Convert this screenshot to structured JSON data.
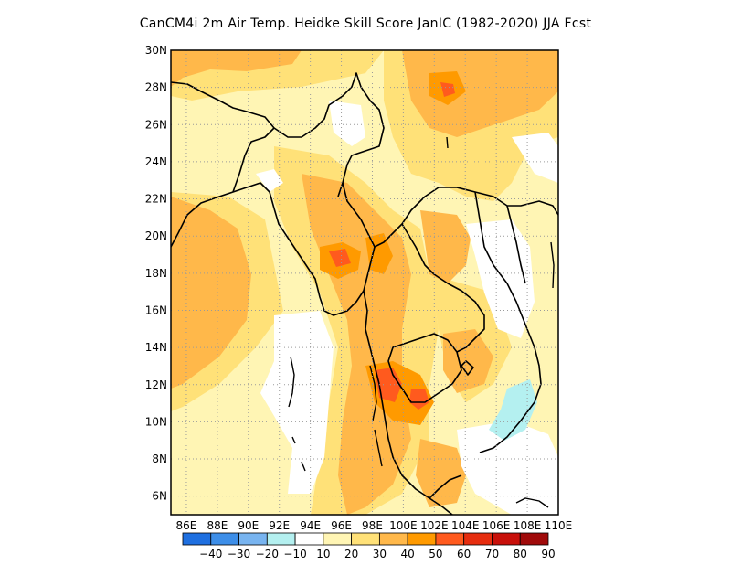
{
  "title": "CanCM4i  2m Air Temp. Heidke Skill Score JanIC (1982-2020) JJA Fcst",
  "map": {
    "lat_labels": [
      "30N",
      "28N",
      "26N",
      "24N",
      "22N",
      "20N",
      "18N",
      "16N",
      "14N",
      "12N",
      "10N",
      "8N",
      "6N"
    ],
    "lon_labels": [
      "86E",
      "88E",
      "90E",
      "92E",
      "94E",
      "96E",
      "98E",
      "100E",
      "102E",
      "104E",
      "106E",
      "108E",
      "110E"
    ],
    "lat_range": [
      5,
      30
    ],
    "lon_range": [
      85,
      110
    ],
    "grid": "dotted"
  },
  "colorbar": {
    "labels": [
      "-40",
      "-30",
      "-20",
      "-10",
      "10",
      "20",
      "30",
      "40",
      "50",
      "60",
      "70",
      "80",
      "90"
    ],
    "colors": [
      "#1e6fe0",
      "#3d8ee8",
      "#78b4f0",
      "#b4f0f0",
      "#ffffff",
      "#fff5b4",
      "#ffe178",
      "#ffb84a",
      "#ff9a00",
      "#ff5a1e",
      "#e62d0f",
      "#c8100a",
      "#a00a0a"
    ]
  }
}
